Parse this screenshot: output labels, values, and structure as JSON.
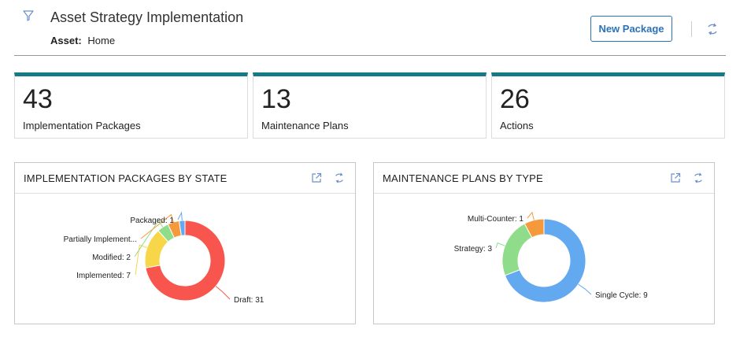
{
  "header": {
    "title": "Asset Strategy Implementation",
    "asset_label": "Asset:",
    "asset_value": "Home",
    "new_package_label": "New Package"
  },
  "kpis": [
    {
      "value": "43",
      "label": "Implementation Packages"
    },
    {
      "value": "13",
      "label": "Maintenance Plans"
    },
    {
      "value": "26",
      "label": "Actions"
    }
  ],
  "colors": {
    "accent": "#157a85",
    "button": "#2a73b8",
    "icon": "#6b8fc9"
  },
  "icons": {
    "filter": "filter-icon",
    "refresh": "refresh-icon",
    "open": "open-external-icon"
  },
  "cards": [
    {
      "title": "IMPLEMENTATION PACKAGES BY STATE",
      "chart_data": {
        "type": "pie",
        "donut": true,
        "slices": [
          {
            "label": "Draft",
            "value": 31,
            "text": "Draft: 31",
            "color": "#f8554e"
          },
          {
            "label": "Implemented",
            "value": 7,
            "text": "Implemented: 7",
            "color": "#f8d64a"
          },
          {
            "label": "Modified",
            "value": 2,
            "text": "Modified: 2",
            "color": "#8fdc8a"
          },
          {
            "label": "Partially Implement...",
            "value": 2,
            "text": "Partially Implement...",
            "color": "#f59a3c"
          },
          {
            "label": "Packaged",
            "value": 1,
            "text": "Packaged: 1",
            "color": "#63a9f0"
          }
        ]
      }
    },
    {
      "title": "MAINTENANCE PLANS BY TYPE",
      "chart_data": {
        "type": "pie",
        "donut": true,
        "slices": [
          {
            "label": "Single Cycle",
            "value": 9,
            "text": "Single Cycle: 9",
            "color": "#63a9f0"
          },
          {
            "label": "Strategy",
            "value": 3,
            "text": "Strategy: 3",
            "color": "#8fdc8a"
          },
          {
            "label": "Multi-Counter",
            "value": 1,
            "text": "Multi-Counter: 1",
            "color": "#f59a3c"
          }
        ]
      }
    }
  ]
}
